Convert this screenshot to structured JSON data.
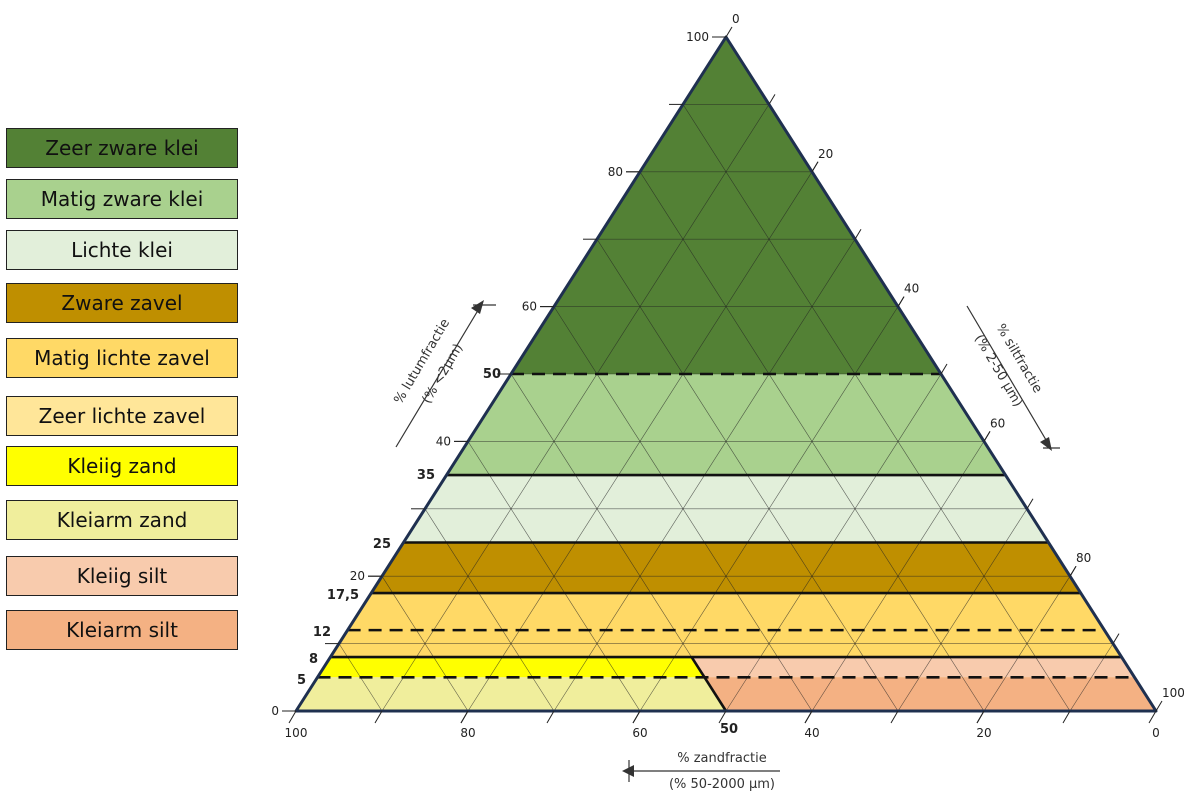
{
  "legend": [
    {
      "label": "Zeer zware klei",
      "color": "#538135"
    },
    {
      "label": "Matig zware klei",
      "color": "#a9d18e"
    },
    {
      "label": "Lichte klei",
      "color": "#e2efda"
    },
    {
      "label": "Zware zavel",
      "color": "#bf8f00"
    },
    {
      "label": "Matig lichte zavel",
      "color": "#ffd966"
    },
    {
      "label": "Zeer lichte zavel",
      "color": "#ffe699"
    },
    {
      "label": "Kleiig zand",
      "color": "#ffff00"
    },
    {
      "label": "Kleiarm zand",
      "color": "#f0ee9c"
    },
    {
      "label": "Kleiig silt",
      "color": "#f8cbad"
    },
    {
      "label": "Kleiarm silt",
      "color": "#f4b183"
    }
  ],
  "axes": {
    "left": {
      "title": "% lutumfractie",
      "subtitle": "(% <2µm)"
    },
    "right": {
      "title": "% siltfractie",
      "subtitle": "(% 2-50 µm)"
    },
    "bottom": {
      "title": "% zandfractie",
      "subtitle": "(% 50-2000 µm)"
    },
    "left_ticks": [
      {
        "value": 0,
        "label": "0"
      },
      {
        "value": 20,
        "label": "20"
      },
      {
        "value": 40,
        "label": "40"
      },
      {
        "value": 60,
        "label": "60"
      },
      {
        "value": 80,
        "label": "80"
      },
      {
        "value": 100,
        "label": "100"
      }
    ],
    "right_ticks": [
      {
        "value": 0,
        "label": "0"
      },
      {
        "value": 20,
        "label": "20"
      },
      {
        "value": 40,
        "label": "40"
      },
      {
        "value": 60,
        "label": "60"
      },
      {
        "value": 80,
        "label": "80"
      },
      {
        "value": 100,
        "label": "100"
      }
    ],
    "bottom_ticks": [
      {
        "value": 100,
        "label": "100"
      },
      {
        "value": 80,
        "label": "80"
      },
      {
        "value": 60,
        "label": "60"
      },
      {
        "value": 40,
        "label": "40"
      },
      {
        "value": 20,
        "label": "20"
      },
      {
        "value": 0,
        "label": "0"
      }
    ]
  },
  "boundaries": [
    {
      "value": 50,
      "label": "50",
      "style": "dashed"
    },
    {
      "value": 35,
      "label": "35",
      "style": "solid"
    },
    {
      "value": 25,
      "label": "25",
      "style": "solid"
    },
    {
      "value": 17.5,
      "label": "17,5",
      "style": "solid"
    },
    {
      "value": 12,
      "label": "12",
      "style": "dashed"
    },
    {
      "value": 8,
      "label": "8",
      "style": "solid"
    },
    {
      "value": 5,
      "label": "5",
      "style": "dashed"
    }
  ],
  "silt_sand_split": {
    "sand": 50,
    "label": "50"
  },
  "bands": [
    {
      "from": 50,
      "to": 100,
      "color": "#538135"
    },
    {
      "from": 35,
      "to": 50,
      "color": "#a9d18e"
    },
    {
      "from": 25,
      "to": 35,
      "color": "#e2efda"
    },
    {
      "from": 17.5,
      "to": 25,
      "color": "#bf8f00"
    },
    {
      "from": 8,
      "to": 17.5,
      "color": "#ffd966"
    },
    {
      "from": 0,
      "to": 8,
      "color": "#ffe699"
    }
  ],
  "sand_zones": [
    {
      "from": 5,
      "to": 8,
      "color": "#ffff00"
    },
    {
      "from": 0,
      "to": 5,
      "color": "#f0ee9c"
    }
  ],
  "silt_zones": [
    {
      "from": 5,
      "to": 8,
      "color": "#f8cbad"
    },
    {
      "from": 0,
      "to": 5,
      "color": "#f4b183"
    }
  ]
}
